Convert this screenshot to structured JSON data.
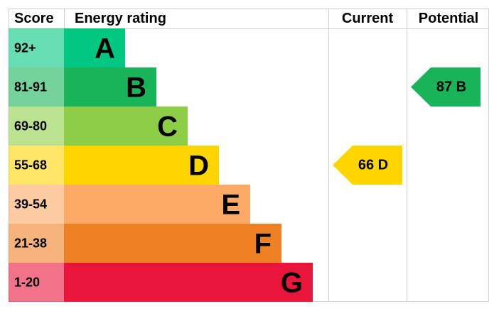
{
  "header": {
    "score": "Score",
    "rating": "Energy rating",
    "current": "Current",
    "potential": "Potential"
  },
  "bands": [
    {
      "score": "92+",
      "letter": "A",
      "color": "#00c781"
    },
    {
      "score": "81-91",
      "letter": "B",
      "color": "#19b459"
    },
    {
      "score": "69-80",
      "letter": "C",
      "color": "#8dce46"
    },
    {
      "score": "55-68",
      "letter": "D",
      "color": "#ffd500"
    },
    {
      "score": "39-54",
      "letter": "E",
      "color": "#fcaa65"
    },
    {
      "score": "21-38",
      "letter": "F",
      "color": "#ef8023"
    },
    {
      "score": "1-20",
      "letter": "G",
      "color": "#e9153b"
    }
  ],
  "current": {
    "value": 66,
    "band": "D"
  },
  "potential": {
    "value": 87,
    "band": "B"
  }
}
